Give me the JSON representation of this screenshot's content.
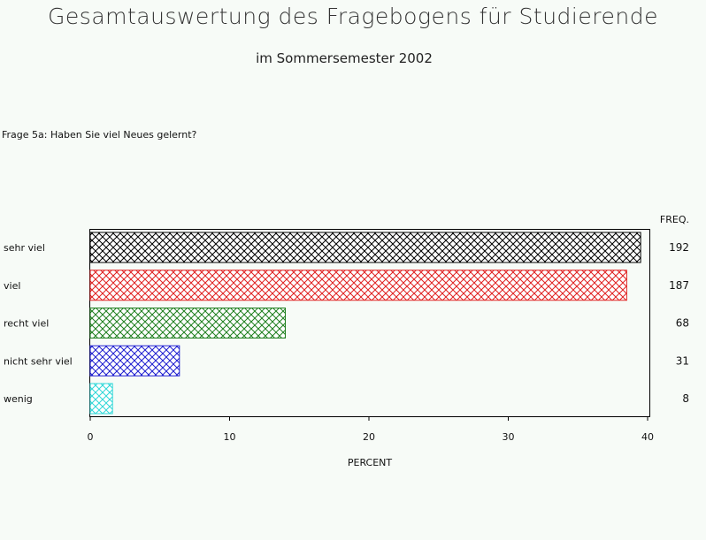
{
  "header": {
    "title": "Gesamtauswertung des Fragebogens für Studierende",
    "subtitle": "im Sommersemester 2002"
  },
  "question": "Frage 5a: Haben Sie viel Neues gelernt?",
  "chart_data": {
    "type": "bar",
    "orientation": "horizontal",
    "categories": [
      "sehr viel",
      "viel",
      "recht viel",
      "nicht sehr viel",
      "wenig"
    ],
    "values": [
      39.5,
      38.5,
      14.0,
      6.4,
      1.6
    ],
    "freq": [
      192,
      187,
      68,
      31,
      8
    ],
    "freq_header": "FREQ.",
    "xlabel": "PERCENT",
    "xlim": [
      0,
      40
    ],
    "xticks": [
      0,
      10,
      20,
      30,
      40
    ],
    "colors": [
      "#000000",
      "#e02020",
      "#208020",
      "#2020d0",
      "#30d8d8"
    ],
    "fill": "crosshatch",
    "grid": false
  }
}
